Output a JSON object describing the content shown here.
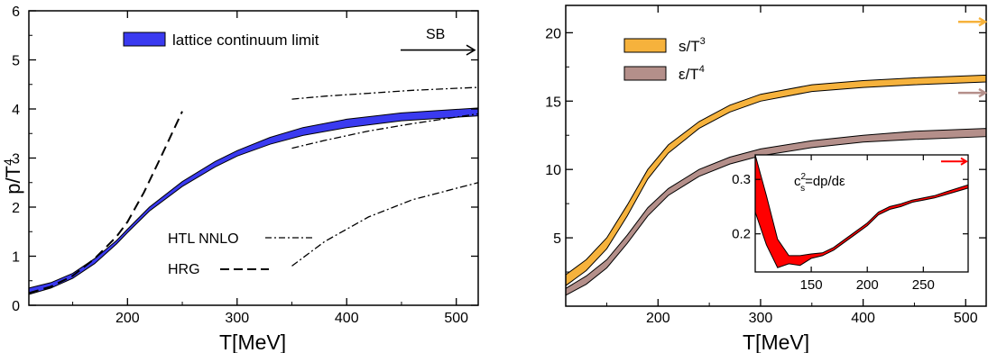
{
  "chart_data": [
    {
      "type": "line",
      "xlabel": "T[MeV]",
      "ylabel": "p/T",
      "ylabel_sup": "4",
      "xlim": [
        110,
        520
      ],
      "ylim": [
        0,
        6
      ],
      "xticks": [
        200,
        300,
        400,
        500
      ],
      "yticks": [
        0,
        1,
        2,
        3,
        4,
        5,
        6
      ],
      "legend_position": "top-left",
      "legend": [
        {
          "label": "lattice continuum limit",
          "color": "#3a3af0"
        }
      ],
      "annotations": [
        {
          "text": "SB",
          "arrow_y": 5.2,
          "style": "arrow"
        },
        {
          "text": "HTL NNLO",
          "style": "dash-dot"
        },
        {
          "text": "HRG",
          "style": "dashed"
        }
      ],
      "series": [
        {
          "band": true,
          "color": "#3a3af0",
          "x": [
            110,
            130,
            150,
            170,
            190,
            200,
            220,
            250,
            280,
            300,
            330,
            360,
            400,
            450,
            520
          ],
          "y_low": [
            0.22,
            0.35,
            0.55,
            0.85,
            1.25,
            1.48,
            1.92,
            2.42,
            2.82,
            3.04,
            3.28,
            3.46,
            3.62,
            3.76,
            3.86
          ],
          "y_high": [
            0.35,
            0.46,
            0.65,
            0.95,
            1.32,
            1.55,
            2.0,
            2.52,
            2.93,
            3.15,
            3.42,
            3.62,
            3.79,
            3.92,
            4.02
          ]
        },
        {
          "style": "dashed",
          "x": [
            110,
            130,
            150,
            170,
            190,
            200,
            215,
            230,
            250
          ],
          "y": [
            0.25,
            0.38,
            0.6,
            0.95,
            1.4,
            1.7,
            2.3,
            3.0,
            3.95
          ]
        },
        {
          "style": "dash-dot",
          "x": [
            350,
            380,
            420,
            460,
            520
          ],
          "y": [
            4.2,
            4.26,
            4.32,
            4.38,
            4.44
          ]
        },
        {
          "style": "dash-dot",
          "x": [
            350,
            380,
            420,
            460,
            520
          ],
          "y": [
            3.2,
            3.36,
            3.55,
            3.7,
            3.9
          ]
        },
        {
          "style": "dash-dot",
          "x": [
            350,
            380,
            420,
            460,
            520
          ],
          "y": [
            0.8,
            1.3,
            1.8,
            2.15,
            2.5
          ]
        }
      ]
    },
    {
      "type": "line",
      "xlabel": "T[MeV]",
      "ylabel": "",
      "xlim": [
        110,
        520
      ],
      "ylim": [
        0,
        22
      ],
      "xticks": [
        200,
        300,
        400,
        500
      ],
      "yticks": [
        5,
        10,
        15,
        20
      ],
      "legend_position": "top-left",
      "legend": [
        {
          "label": "s/T",
          "sup": "3",
          "color": "#f6b23c"
        },
        {
          "label": "ε/T",
          "sup": "4",
          "color": "#b48f8a"
        }
      ],
      "sb_arrows": [
        {
          "y": 20.8,
          "color": "#f6b23c"
        },
        {
          "y": 15.6,
          "color": "#b48f8a"
        }
      ],
      "series": [
        {
          "name": "s/T3",
          "band": true,
          "color": "#f6b23c",
          "x": [
            110,
            130,
            150,
            170,
            190,
            210,
            240,
            270,
            300,
            350,
            400,
            450,
            520
          ],
          "y_low": [
            1.5,
            2.6,
            4.2,
            6.6,
            9.3,
            11.2,
            13.0,
            14.2,
            15.0,
            15.7,
            16.0,
            16.2,
            16.4
          ],
          "y_high": [
            2.3,
            3.4,
            5.0,
            7.4,
            10.0,
            11.8,
            13.5,
            14.7,
            15.5,
            16.2,
            16.5,
            16.7,
            16.9
          ]
        },
        {
          "name": "ε/T4",
          "band": true,
          "color": "#b48f8a",
          "x": [
            110,
            130,
            150,
            170,
            190,
            210,
            240,
            270,
            300,
            350,
            400,
            450,
            520
          ],
          "y_low": [
            0.8,
            1.6,
            2.8,
            4.6,
            6.6,
            8.1,
            9.5,
            10.4,
            11.0,
            11.6,
            12.0,
            12.2,
            12.4
          ],
          "y_high": [
            1.3,
            2.2,
            3.4,
            5.2,
            7.2,
            8.6,
            10.0,
            10.9,
            11.5,
            12.1,
            12.5,
            12.8,
            13.0
          ]
        }
      ],
      "inset": {
        "label": "c",
        "label_sub": "s",
        "label_sup": "2",
        "label_rest": "=dp/dε",
        "xlim": [
          100,
          290
        ],
        "ylim": [
          0.13,
          0.345
        ],
        "xticks": [
          150,
          200,
          250
        ],
        "yticks": [
          0.2,
          0.3
        ],
        "sb_arrow": {
          "y": 0.333,
          "color": "#ff0000"
        },
        "band": {
          "color": "#ff0000",
          "x": [
            100,
            110,
            120,
            130,
            140,
            150,
            160,
            170,
            180,
            190,
            200,
            210,
            220,
            230,
            240,
            250,
            260,
            270,
            290
          ],
          "y_low": [
            0.24,
            0.18,
            0.138,
            0.145,
            0.142,
            0.155,
            0.16,
            0.17,
            0.185,
            0.2,
            0.215,
            0.235,
            0.245,
            0.25,
            0.258,
            0.262,
            0.266,
            0.272,
            0.284
          ],
          "y_high": [
            0.345,
            0.27,
            0.19,
            0.16,
            0.16,
            0.163,
            0.165,
            0.175,
            0.19,
            0.205,
            0.22,
            0.24,
            0.25,
            0.255,
            0.262,
            0.266,
            0.27,
            0.277,
            0.29
          ]
        }
      }
    }
  ]
}
